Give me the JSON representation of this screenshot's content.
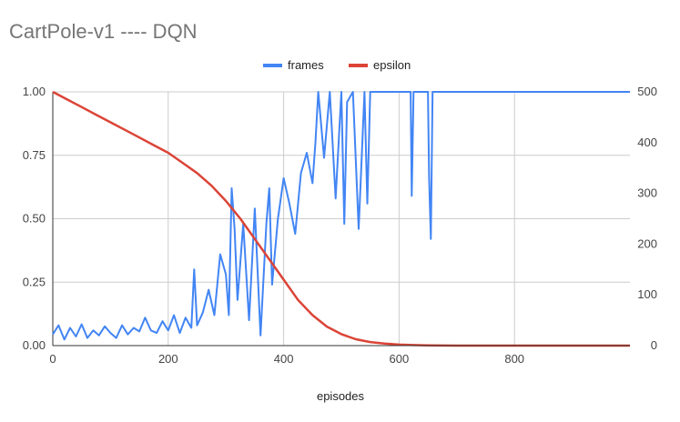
{
  "chart_data": {
    "type": "line",
    "title": "CartPole-v1 ---- DQN",
    "xlabel": "episodes",
    "ylabel_left": "",
    "ylabel_right": "",
    "xlim": [
      0,
      1000
    ],
    "x_ticks": [
      0,
      200,
      400,
      600,
      800
    ],
    "x_tick_labels": [
      "0",
      "200",
      "400",
      "600",
      "800"
    ],
    "y_left_lim": [
      0,
      1
    ],
    "y_left_ticks": [
      0,
      0.25,
      0.5,
      0.75,
      1
    ],
    "y_left_tick_labels": [
      "0.00",
      "0.25",
      "0.50",
      "0.75",
      "1.00"
    ],
    "y_right_lim": [
      0,
      500
    ],
    "y_right_ticks": [
      0,
      100,
      200,
      300,
      400,
      500
    ],
    "y_right_tick_labels": [
      "0",
      "100",
      "200",
      "300",
      "400",
      "500"
    ],
    "grid": true,
    "legend_position": "top",
    "series": [
      {
        "name": "frames",
        "axis": "right",
        "color": "#4285f4",
        "x": [
          0,
          10,
          20,
          30,
          40,
          50,
          60,
          70,
          80,
          90,
          100,
          110,
          120,
          130,
          140,
          150,
          160,
          170,
          180,
          190,
          200,
          210,
          220,
          230,
          240,
          245,
          250,
          260,
          270,
          280,
          290,
          300,
          305,
          310,
          315,
          320,
          330,
          340,
          350,
          360,
          370,
          375,
          380,
          390,
          400,
          410,
          420,
          430,
          440,
          450,
          455,
          460,
          470,
          480,
          490,
          500,
          505,
          510,
          520,
          530,
          540,
          545,
          550,
          555,
          560,
          570,
          580,
          590,
          600,
          610,
          620,
          622,
          625,
          630,
          640,
          650,
          652,
          655,
          658,
          660,
          670,
          700,
          750,
          800,
          850,
          900,
          950,
          1000
        ],
        "y": [
          22,
          40,
          12,
          35,
          18,
          42,
          15,
          30,
          20,
          38,
          25,
          15,
          40,
          22,
          35,
          28,
          55,
          30,
          25,
          48,
          30,
          60,
          25,
          55,
          35,
          150,
          40,
          65,
          110,
          60,
          180,
          140,
          60,
          310,
          230,
          90,
          240,
          50,
          270,
          20,
          240,
          310,
          120,
          250,
          330,
          280,
          220,
          340,
          380,
          320,
          400,
          500,
          370,
          500,
          290,
          500,
          240,
          480,
          500,
          230,
          500,
          280,
          500,
          500,
          500,
          500,
          500,
          500,
          500,
          500,
          500,
          295,
          500,
          500,
          500,
          500,
          330,
          210,
          500,
          500,
          500,
          500,
          500,
          500,
          500,
          500,
          500,
          500
        ]
      },
      {
        "name": "epsilon",
        "axis": "left",
        "color": "#db4437",
        "x": [
          0,
          25,
          50,
          75,
          100,
          125,
          150,
          175,
          200,
          225,
          250,
          275,
          300,
          325,
          350,
          375,
          400,
          425,
          450,
          475,
          500,
          525,
          550,
          575,
          600,
          625,
          650,
          700,
          750,
          800,
          850,
          900,
          950,
          1000
        ],
        "y": [
          1.0,
          0.97,
          0.94,
          0.91,
          0.88,
          0.85,
          0.82,
          0.79,
          0.76,
          0.72,
          0.68,
          0.63,
          0.57,
          0.5,
          0.42,
          0.34,
          0.26,
          0.18,
          0.12,
          0.075,
          0.045,
          0.025,
          0.014,
          0.008,
          0.004,
          0.002,
          0.001,
          0.0,
          0.0,
          0.0,
          0.0,
          0.0,
          0.0,
          0.0
        ]
      }
    ]
  }
}
